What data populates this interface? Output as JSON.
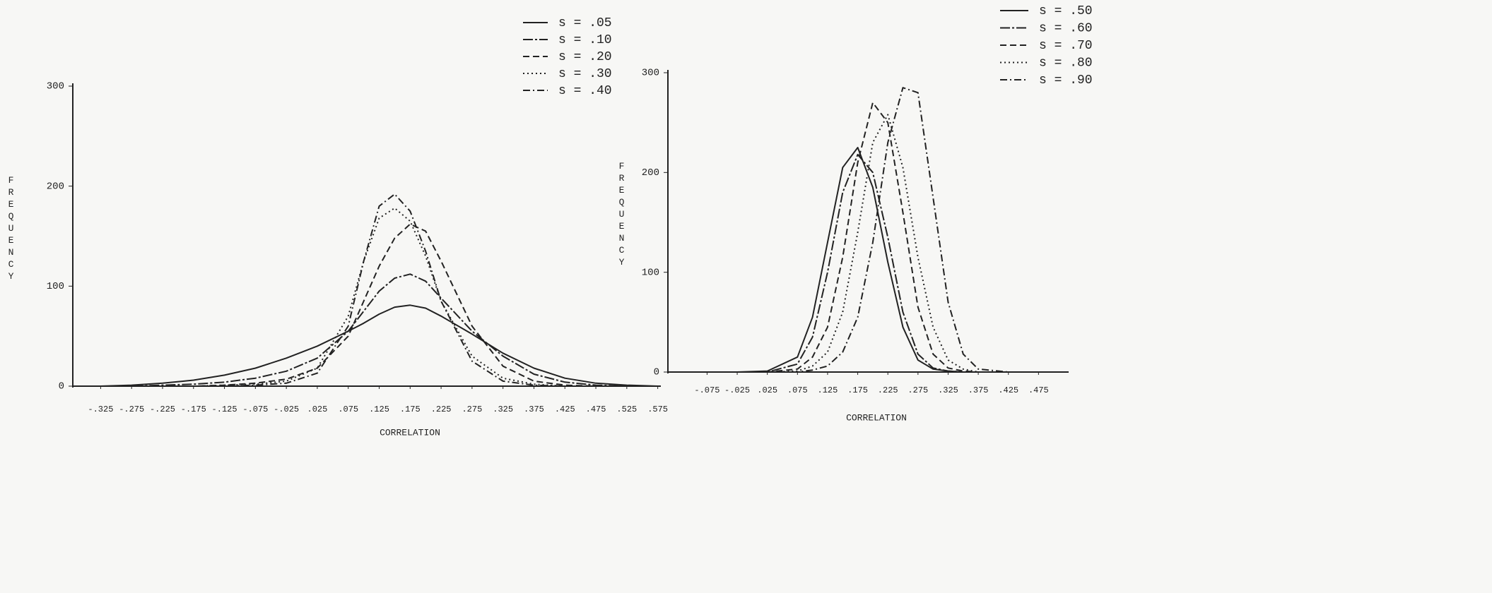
{
  "chart_data": [
    {
      "type": "line",
      "x_label": "CORRELATION",
      "y_label": "FREQUENCY",
      "xlim": [
        -0.37,
        0.58
      ],
      "ylim": [
        0,
        300
      ],
      "xticks": [
        {
          "value": -0.325,
          "label": "-.325"
        },
        {
          "value": -0.275,
          "label": "-.275"
        },
        {
          "value": -0.225,
          "label": "-.225"
        },
        {
          "value": -0.175,
          "label": "-.175"
        },
        {
          "value": -0.125,
          "label": "-.125"
        },
        {
          "value": -0.075,
          "label": "-.075"
        },
        {
          "value": -0.025,
          "label": "-.025"
        },
        {
          "value": 0.025,
          "label": ".025"
        },
        {
          "value": 0.075,
          "label": ".075"
        },
        {
          "value": 0.125,
          "label": ".125"
        },
        {
          "value": 0.175,
          "label": ".175"
        },
        {
          "value": 0.225,
          "label": ".225"
        },
        {
          "value": 0.275,
          "label": ".275"
        },
        {
          "value": 0.325,
          "label": ".325"
        },
        {
          "value": 0.375,
          "label": ".375"
        },
        {
          "value": 0.425,
          "label": ".425"
        },
        {
          "value": 0.475,
          "label": ".475"
        },
        {
          "value": 0.525,
          "label": ".525"
        },
        {
          "value": 0.575,
          "label": ".575"
        }
      ],
      "yticks": [
        0,
        100,
        200,
        300
      ],
      "grid": false,
      "x": [
        -0.325,
        -0.275,
        -0.225,
        -0.175,
        -0.125,
        -0.075,
        -0.025,
        0.025,
        0.075,
        0.1,
        0.125,
        0.15,
        0.175,
        0.2,
        0.225,
        0.275,
        0.325,
        0.375,
        0.425,
        0.475,
        0.525,
        0.575
      ],
      "series": [
        {
          "name": "s = .05",
          "color": "#222222",
          "dash": "solid",
          "values": [
            0,
            1,
            3,
            6,
            11,
            18,
            28,
            40,
            55,
            63,
            72,
            79,
            81,
            78,
            70,
            52,
            33,
            18,
            8,
            3,
            1,
            0
          ]
        },
        {
          "name": "s = .10",
          "color": "#222222",
          "dash": "dash-cross",
          "values": [
            0,
            0,
            1,
            2,
            4,
            8,
            15,
            28,
            55,
            75,
            95,
            108,
            112,
            105,
            88,
            55,
            30,
            12,
            4,
            1,
            0,
            0
          ]
        },
        {
          "name": "s = .20",
          "color": "#222222",
          "dash": "dashed",
          "values": [
            0,
            0,
            0,
            0,
            1,
            3,
            7,
            18,
            50,
            85,
            120,
            148,
            162,
            155,
            125,
            60,
            20,
            5,
            1,
            0,
            0,
            0
          ]
        },
        {
          "name": "s = .30",
          "color": "#222222",
          "dash": "dotted",
          "values": [
            0,
            0,
            0,
            0,
            1,
            2,
            5,
            18,
            70,
            125,
            168,
            178,
            165,
            130,
            85,
            30,
            8,
            2,
            0,
            0,
            0,
            0
          ]
        },
        {
          "name": "s = .40",
          "color": "#222222",
          "dash": "dash-dot",
          "values": [
            0,
            0,
            0,
            0,
            0,
            1,
            3,
            13,
            60,
            125,
            180,
            192,
            175,
            135,
            85,
            25,
            5,
            1,
            0,
            0,
            0,
            0
          ]
        }
      ]
    },
    {
      "type": "line",
      "x_label": "CORRELATION",
      "y_label": "FREQUENCY",
      "xlim": [
        -0.14,
        0.525
      ],
      "ylim": [
        0,
        300
      ],
      "xticks": [
        {
          "value": -0.075,
          "label": "-.075"
        },
        {
          "value": -0.025,
          "label": "-.025"
        },
        {
          "value": 0.025,
          "label": ".025"
        },
        {
          "value": 0.075,
          "label": ".075"
        },
        {
          "value": 0.125,
          "label": ".125"
        },
        {
          "value": 0.175,
          "label": ".175"
        },
        {
          "value": 0.225,
          "label": ".225"
        },
        {
          "value": 0.275,
          "label": ".275"
        },
        {
          "value": 0.325,
          "label": ".325"
        },
        {
          "value": 0.375,
          "label": ".375"
        },
        {
          "value": 0.425,
          "label": ".425"
        },
        {
          "value": 0.475,
          "label": ".475"
        }
      ],
      "yticks": [
        0,
        100,
        200,
        300
      ],
      "grid": false,
      "x": [
        -0.075,
        -0.025,
        0.025,
        0.075,
        0.1,
        0.125,
        0.15,
        0.175,
        0.2,
        0.225,
        0.25,
        0.275,
        0.3,
        0.325,
        0.35,
        0.375,
        0.425,
        0.475
      ],
      "series": [
        {
          "name": "s = .50",
          "color": "#222222",
          "dash": "solid",
          "values": [
            0,
            0,
            1,
            15,
            55,
            130,
            205,
            225,
            185,
            110,
            45,
            12,
            3,
            1,
            0,
            0,
            0,
            0
          ]
        },
        {
          "name": "s = .60",
          "color": "#222222",
          "dash": "dash-cross",
          "values": [
            0,
            0,
            0,
            8,
            35,
            100,
            180,
            218,
            200,
            135,
            60,
            18,
            4,
            1,
            0,
            0,
            0,
            0
          ]
        },
        {
          "name": "s = .70",
          "color": "#222222",
          "dash": "dashed",
          "values": [
            0,
            0,
            0,
            3,
            15,
            45,
            115,
            210,
            270,
            250,
            160,
            65,
            18,
            4,
            1,
            0,
            0,
            0
          ]
        },
        {
          "name": "s = .80",
          "color": "#222222",
          "dash": "dotted",
          "values": [
            0,
            0,
            0,
            1,
            6,
            20,
            60,
            140,
            230,
            258,
            205,
            115,
            45,
            12,
            3,
            0,
            0,
            0
          ]
        },
        {
          "name": "s = .90",
          "color": "#222222",
          "dash": "dash-dot",
          "values": [
            0,
            0,
            0,
            0,
            2,
            6,
            20,
            55,
            130,
            230,
            285,
            280,
            175,
            70,
            18,
            3,
            0,
            0
          ]
        }
      ]
    }
  ]
}
